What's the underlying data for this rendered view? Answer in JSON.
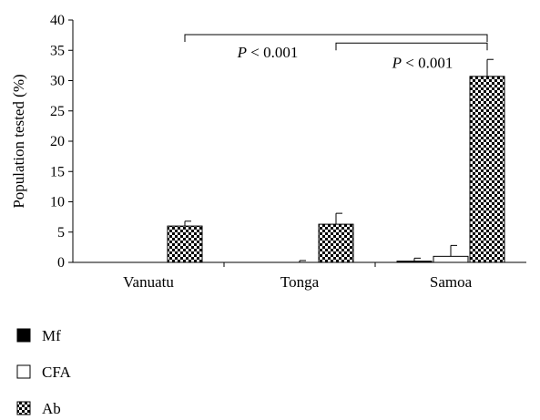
{
  "chart_data": {
    "type": "bar",
    "title": "",
    "xlabel": "",
    "ylabel": "Population tested (%)",
    "ylim": [
      0,
      40
    ],
    "yticks": [
      0,
      5,
      10,
      15,
      20,
      25,
      30,
      35,
      40
    ],
    "categories": [
      "Vanuatu",
      "Tonga",
      "Samoa"
    ],
    "series": [
      {
        "name": "Mf",
        "fill": "solid-black",
        "values": [
          0,
          0,
          0.2
        ],
        "errors": [
          0,
          0,
          0.5
        ]
      },
      {
        "name": "CFA",
        "fill": "white",
        "values": [
          0,
          0,
          1.0
        ],
        "errors": [
          0,
          0.3,
          1.8
        ]
      },
      {
        "name": "Ab",
        "fill": "checkered",
        "values": [
          6.0,
          6.3,
          30.7
        ],
        "errors": [
          0.8,
          1.8,
          2.8
        ]
      }
    ],
    "annotations": [
      {
        "text": "P < 0.001",
        "from": "Vanuatu",
        "to": "Samoa"
      },
      {
        "text": "P < 0.001",
        "from": "Tonga",
        "to": "Samoa"
      }
    ],
    "legend_position": "bottom-left",
    "grid": false
  }
}
